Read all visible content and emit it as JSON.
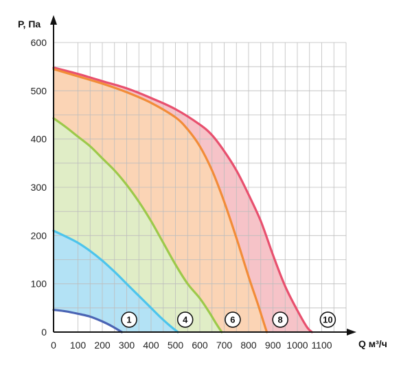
{
  "chart_data": {
    "type": "area",
    "xlabel": "Q м³/ч",
    "ylabel": "P, Па",
    "xlim": [
      0,
      1200
    ],
    "ylim": [
      0,
      600
    ],
    "x_ticks": [
      "0",
      "100",
      "200",
      "300",
      "400",
      "500",
      "600",
      "700",
      "800",
      "900",
      "1000",
      "1100"
    ],
    "y_ticks": [
      "0",
      "100",
      "200",
      "300",
      "400",
      "500",
      "600"
    ],
    "grid": true,
    "series": [
      {
        "label": "10",
        "color": "#e8506e",
        "fill": "#f6c3c8",
        "points": [
          [
            0,
            548
          ],
          [
            100,
            535
          ],
          [
            200,
            520
          ],
          [
            300,
            505
          ],
          [
            400,
            485
          ],
          [
            500,
            462
          ],
          [
            600,
            430
          ],
          [
            650,
            408
          ],
          [
            700,
            375
          ],
          [
            750,
            335
          ],
          [
            800,
            285
          ],
          [
            850,
            230
          ],
          [
            900,
            160
          ],
          [
            950,
            95
          ],
          [
            1000,
            45
          ],
          [
            1040,
            10
          ],
          [
            1060,
            0
          ]
        ]
      },
      {
        "label": "8",
        "color": "#f28c38",
        "fill": "#fbd4b5",
        "points": [
          [
            0,
            545
          ],
          [
            100,
            530
          ],
          [
            200,
            515
          ],
          [
            300,
            497
          ],
          [
            400,
            475
          ],
          [
            500,
            445
          ],
          [
            550,
            420
          ],
          [
            600,
            385
          ],
          [
            650,
            335
          ],
          [
            700,
            270
          ],
          [
            750,
            195
          ],
          [
            800,
            115
          ],
          [
            840,
            55
          ],
          [
            865,
            15
          ],
          [
            875,
            0
          ]
        ]
      },
      {
        "label": "6",
        "color": "#9cc94a",
        "fill": "#e0edc6",
        "points": [
          [
            0,
            443
          ],
          [
            50,
            425
          ],
          [
            100,
            405
          ],
          [
            150,
            385
          ],
          [
            200,
            360
          ],
          [
            250,
            335
          ],
          [
            300,
            305
          ],
          [
            350,
            270
          ],
          [
            400,
            230
          ],
          [
            450,
            185
          ],
          [
            500,
            140
          ],
          [
            550,
            100
          ],
          [
            600,
            70
          ],
          [
            640,
            40
          ],
          [
            670,
            15
          ],
          [
            690,
            0
          ]
        ]
      },
      {
        "label": "4",
        "color": "#4cc4ec",
        "fill": "#b3e2f5",
        "points": [
          [
            0,
            210
          ],
          [
            50,
            198
          ],
          [
            100,
            185
          ],
          [
            150,
            168
          ],
          [
            200,
            148
          ],
          [
            250,
            125
          ],
          [
            300,
            100
          ],
          [
            350,
            75
          ],
          [
            400,
            50
          ],
          [
            440,
            30
          ],
          [
            480,
            12
          ],
          [
            510,
            0
          ]
        ]
      },
      {
        "label": "1",
        "color": "#4a64b4",
        "fill": "#ffffff",
        "points": [
          [
            0,
            46
          ],
          [
            50,
            43
          ],
          [
            100,
            38
          ],
          [
            150,
            32
          ],
          [
            200,
            22
          ],
          [
            240,
            12
          ],
          [
            270,
            3
          ],
          [
            280,
            0
          ]
        ]
      }
    ],
    "badges": [
      {
        "text": "1",
        "x": 310,
        "y": 20
      },
      {
        "text": "4",
        "x": 540,
        "y": 20
      },
      {
        "text": "6",
        "x": 735,
        "y": 20
      },
      {
        "text": "8",
        "x": 930,
        "y": 20
      },
      {
        "text": "10",
        "x": 1125,
        "y": 20
      }
    ]
  }
}
